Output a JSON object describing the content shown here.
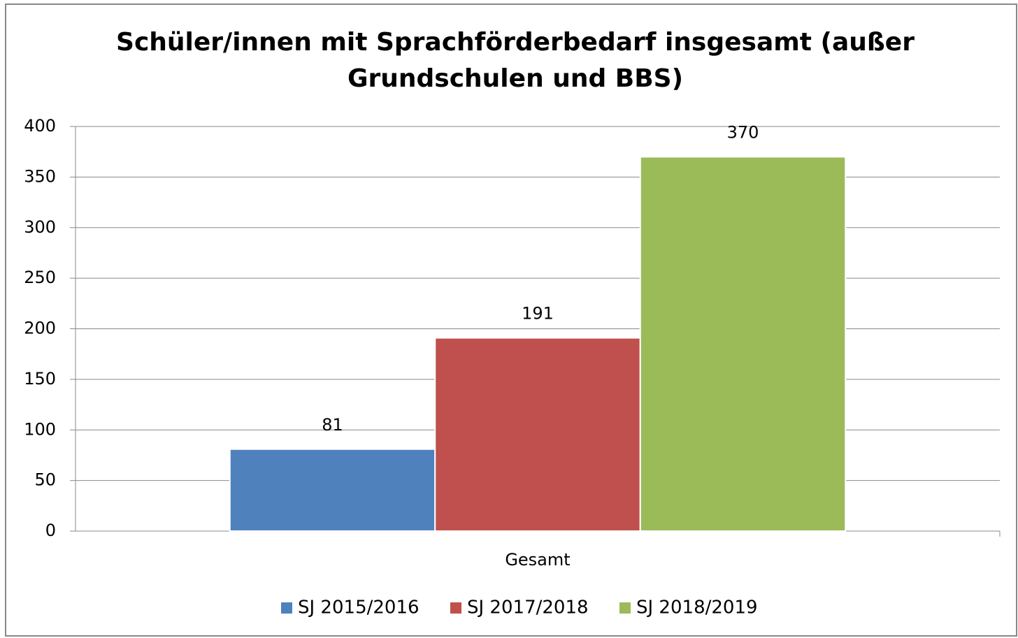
{
  "chart_data": {
    "type": "bar",
    "title": [
      "Schüler/innen mit Sprachförderbedarf insgesamt (außer",
      "Grundschulen und BBS)"
    ],
    "categories": [
      "Gesamt"
    ],
    "series": [
      {
        "name": "SJ 2015/2016",
        "color": "#4f81bd",
        "values": [
          81
        ]
      },
      {
        "name": "SJ 2017/2018",
        "color": "#c0504d",
        "values": [
          191
        ]
      },
      {
        "name": "SJ 2018/2019",
        "color": "#9bbb59",
        "values": [
          370
        ]
      }
    ],
    "ylim": [
      0,
      400
    ],
    "yticks": [
      0,
      50,
      100,
      150,
      200,
      250,
      300,
      350,
      400
    ],
    "grid": true,
    "legend": "bottom",
    "data_labels": true
  }
}
